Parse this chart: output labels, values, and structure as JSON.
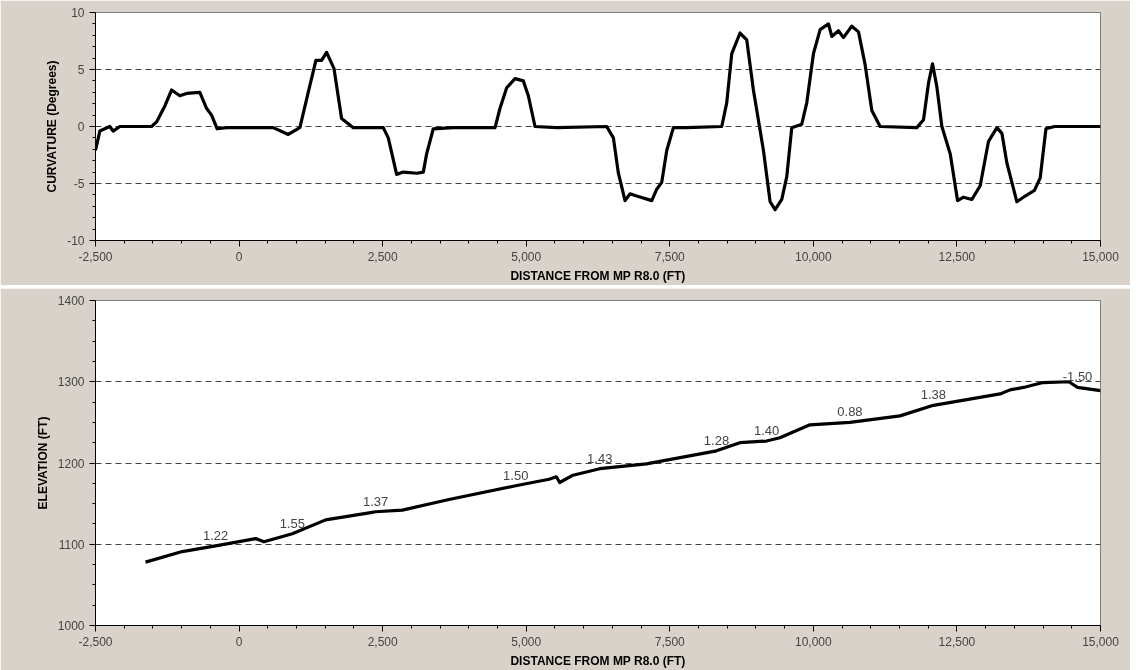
{
  "chart_data": [
    {
      "type": "line",
      "xlabel": "DISTANCE FROM MP R8.0 (FT)",
      "ylabel": "CURVATURE (Degrees)",
      "grid": "y",
      "line_style": "solid",
      "marker": "none",
      "xlim": [
        -2500,
        15000
      ],
      "ylim": [
        -10,
        10
      ],
      "xticks": [
        {
          "value": -2500,
          "label": "-2,500"
        },
        0,
        {
          "value": 2500,
          "label": "2,500"
        },
        {
          "value": 5000,
          "label": "5,000"
        },
        {
          "value": 7500,
          "label": "7,500"
        },
        {
          "value": 10000,
          "label": "10,000"
        },
        {
          "value": 12500,
          "label": "12,500"
        },
        {
          "value": 15000,
          "label": "15,000"
        }
      ],
      "yticks": [
        -10,
        -5,
        0,
        5,
        10
      ],
      "series": [
        {
          "color": "#000000",
          "x": [
            -2500,
            -2425,
            -2251,
            -2193,
            -2076,
            -1844,
            -1524,
            -1437,
            -1292,
            -1176,
            -1031,
            -915,
            -683,
            -567,
            -479,
            -381,
            -218,
            595,
            856,
            1059,
            1204,
            1338,
            1437,
            1524,
            1652,
            1785,
            1989,
            2511,
            2598,
            2744,
            2860,
            3092,
            3208,
            3266,
            3382,
            3731,
            4457,
            4544,
            4660,
            4805,
            4950,
            5037,
            5153,
            5530,
            6401,
            6518,
            6605,
            6721,
            6808,
            6924,
            7186,
            7273,
            7360,
            7447,
            7563,
            7795,
            8405,
            8492,
            8579,
            8724,
            8840,
            8956,
            9131,
            9247,
            9334,
            9450,
            9537,
            9624,
            9798,
            9886,
            10002,
            10118,
            10263,
            10321,
            10437,
            10524,
            10669,
            10786,
            10902,
            11018,
            11163,
            11802,
            11918,
            12005,
            12075,
            12150,
            12238,
            12383,
            12511,
            12615,
            12760,
            12905,
            13050,
            13196,
            13283,
            13370,
            13457,
            13544,
            13689,
            13850,
            13950,
            14050,
            14200,
            15000
          ],
          "values": [
            -2.1,
            -0.4,
            0,
            -0.4,
            0,
            0,
            0,
            0.4,
            1.8,
            3.2,
            2.7,
            2.9,
            3.0,
            1.6,
            1.0,
            -0.2,
            -0.1,
            -0.1,
            -0.7,
            -0.1,
            3.0,
            5.8,
            5.8,
            6.5,
            5.1,
            0.7,
            -0.1,
            -0.1,
            -1.0,
            -4.2,
            -4.0,
            -4.1,
            -4.0,
            -2.4,
            -0.2,
            -0.1,
            -0.1,
            1.6,
            3.4,
            4.2,
            4.0,
            2.7,
            0,
            -0.1,
            0,
            -1.0,
            -4.1,
            -6.5,
            -5.9,
            -6.1,
            -6.5,
            -5.5,
            -4.9,
            -2.1,
            -0.1,
            -0.1,
            0,
            2.1,
            6.4,
            8.2,
            7.6,
            3.2,
            -2.1,
            -6.6,
            -7.3,
            -6.4,
            -4.4,
            -0.1,
            0.2,
            2.1,
            6.4,
            8.5,
            9.0,
            7.9,
            8.4,
            7.8,
            8.8,
            8.3,
            5.4,
            1.4,
            0,
            -0.1,
            0.6,
            3.8,
            5.5,
            3.5,
            0,
            -2.4,
            -6.5,
            -6.2,
            -6.4,
            -5.2,
            -1.3,
            -0.1,
            -0.6,
            -3.2,
            -4.9,
            -6.6,
            -6.1,
            -5.6,
            -4.5,
            -0.2,
            0,
            0
          ]
        }
      ]
    },
    {
      "type": "line",
      "xlabel": "DISTANCE FROM MP R8.0 (FT)",
      "ylabel": "ELEVATION (FT)",
      "grid": "y",
      "line_style": "solid",
      "marker": "none",
      "xlim": [
        -2500,
        15000
      ],
      "ylim": [
        1000,
        1400
      ],
      "xticks": [
        {
          "value": -2500,
          "label": "-2,500"
        },
        0,
        {
          "value": 2500,
          "label": "2,500"
        },
        {
          "value": 5000,
          "label": "5,000"
        },
        {
          "value": 7500,
          "label": "7,500"
        },
        {
          "value": 10000,
          "label": "10,000"
        },
        {
          "value": 12500,
          "label": "12,500"
        },
        {
          "value": 15000,
          "label": "15,000"
        }
      ],
      "yticks": [
        1000,
        1100,
        1200,
        1300,
        1400
      ],
      "series": [
        {
          "color": "#000000",
          "x": [
            -1629,
            -990,
            -409,
            288,
            433,
            927,
            1507,
            2291,
            2378,
            2843,
            3655,
            4817,
            5398,
            5525,
            5583,
            5815,
            6280,
            7093,
            8313,
            8720,
            9185,
            9417,
            9940,
            10637,
            11509,
            12090,
            13252,
            13426,
            13658,
            14000,
            14450,
            14600,
            15000
          ],
          "values": [
            1078,
            1091,
            1098,
            1107,
            1103,
            1113,
            1130,
            1139,
            1140,
            1142,
            1155,
            1172,
            1180,
            1183,
            1176,
            1185,
            1193,
            1199,
            1215,
            1225,
            1227,
            1231,
            1247,
            1250,
            1258,
            1271,
            1285,
            1290,
            1293,
            1299,
            1300,
            1293,
            1289
          ]
        }
      ],
      "annotations": [
        {
          "text": "1.22",
          "x": -409,
          "y": 1098
        },
        {
          "text": "1.55",
          "x": 927,
          "y": 1113
        },
        {
          "text": "1.37",
          "x": 2378,
          "y": 1140
        },
        {
          "text": "1.50",
          "x": 4817,
          "y": 1172
        },
        {
          "text": "1.43",
          "x": 6280,
          "y": 1193
        },
        {
          "text": "1.28",
          "x": 8313,
          "y": 1215
        },
        {
          "text": "1.40",
          "x": 9185,
          "y": 1227
        },
        {
          "text": "0.88",
          "x": 10637,
          "y": 1250
        },
        {
          "text": "1.38",
          "x": 12090,
          "y": 1271
        },
        {
          "text": "-1.50",
          "x": 14600,
          "y": 1293
        }
      ]
    }
  ]
}
